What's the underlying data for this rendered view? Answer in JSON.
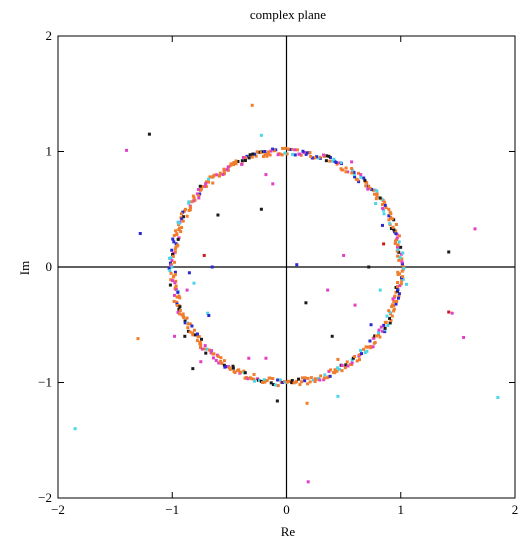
{
  "chart_data": {
    "type": "scatter",
    "title": "complex plane",
    "xlabel": "Re",
    "ylabel": "Im",
    "xlim": [
      -2,
      2
    ],
    "ylim": [
      -2,
      2
    ],
    "xticks": [
      -2,
      -1,
      0,
      1,
      2
    ],
    "yticks": [
      -2,
      -1,
      0,
      1,
      2
    ],
    "grid": false,
    "axes_through_origin": true,
    "colors": {
      "circle": "#f07c2c",
      "orange": "#f07c2c",
      "magenta": "#e040c8",
      "cyan": "#4ad6e8",
      "blue": "#2a2ad0",
      "black": "#1a1a1a",
      "red": "#d01818"
    },
    "circle": {
      "center": [
        0,
        0
      ],
      "radius": 1,
      "point_count": 500,
      "jitter": 0.03
    },
    "series": [
      {
        "color": "orange",
        "x": [
          -0.3,
          0.18,
          -0.65,
          0.45,
          -1.3
        ],
        "y": [
          1.4,
          -1.18,
          0.78,
          -0.8,
          -0.62
        ]
      },
      {
        "color": "magenta",
        "x": [
          -1.4,
          1.65,
          1.45,
          0.19,
          -0.12,
          -0.18,
          0.57,
          0.65,
          -0.18,
          -0.33,
          -0.75,
          0.5,
          0.6,
          0.83,
          -0.98,
          -0.87,
          0.36,
          1.55
        ],
        "y": [
          1.01,
          0.33,
          -0.4,
          -1.86,
          0.72,
          0.8,
          0.91,
          0.8,
          -0.79,
          -0.79,
          -0.82,
          0.1,
          -0.33,
          -0.52,
          -0.6,
          -0.2,
          -0.2,
          -0.61
        ]
      },
      {
        "color": "cyan",
        "x": [
          -1.85,
          1.85,
          -0.22,
          0.45,
          -0.81,
          -0.69,
          1.05,
          0.78,
          0.82,
          -0.94
        ],
        "y": [
          -1.4,
          -1.13,
          1.14,
          -1.12,
          -0.14,
          -0.4,
          -0.15,
          0.55,
          -0.2,
          0.38
        ]
      },
      {
        "color": "blue",
        "x": [
          -1.28,
          -0.19,
          0.09,
          0.98,
          -0.85,
          -0.65,
          -0.68,
          0.84,
          0.74,
          -0.78
        ],
        "y": [
          0.29,
          1.0,
          0.02,
          -0.27,
          -0.05,
          0.0,
          -0.42,
          0.36,
          -0.5,
          -0.58
        ]
      },
      {
        "color": "black",
        "x": [
          -1.2,
          -0.82,
          0.17,
          1.42,
          -0.08,
          -0.6,
          0.72,
          -0.89,
          0.4,
          -0.22
        ],
        "y": [
          1.15,
          -0.88,
          -0.31,
          0.13,
          -1.16,
          0.45,
          0.0,
          -0.6,
          -0.6,
          0.5
        ]
      },
      {
        "color": "red",
        "x": [
          1.42,
          0.85,
          -0.72
        ],
        "y": [
          -0.39,
          0.2,
          0.1
        ]
      }
    ]
  }
}
